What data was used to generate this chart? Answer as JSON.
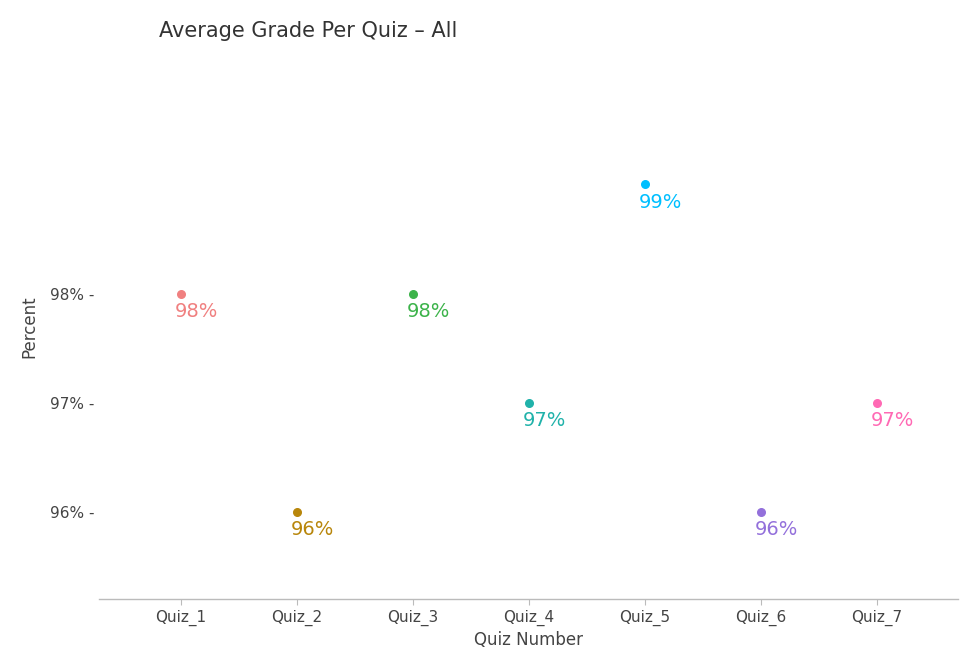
{
  "title": "Average Grade Per Quiz – All",
  "xlabel": "Quiz Number",
  "ylabel": "Percent",
  "quizzes": [
    "Quiz_1",
    "Quiz_2",
    "Quiz_3",
    "Quiz_4",
    "Quiz_5",
    "Quiz_6",
    "Quiz_7"
  ],
  "x_values": [
    1,
    2,
    3,
    4,
    5,
    6,
    7
  ],
  "y_values": [
    98,
    96,
    98,
    97,
    99,
    96,
    97
  ],
  "colors": [
    "#f08080",
    "#b8860b",
    "#3cb34a",
    "#20b2aa",
    "#00bfff",
    "#9370db",
    "#ff69b4"
  ],
  "labels": [
    "98%",
    "96%",
    "98%",
    "97%",
    "99%",
    "96%",
    "97%"
  ],
  "ylim": [
    95.2,
    100.2
  ],
  "yticks": [
    96,
    97,
    98
  ],
  "ytick_labels": [
    "96% -",
    "97% -",
    "98% -"
  ],
  "background_color": "#ffffff",
  "title_fontsize": 15,
  "label_fontsize": 14,
  "axis_label_fontsize": 12,
  "tick_fontsize": 11
}
